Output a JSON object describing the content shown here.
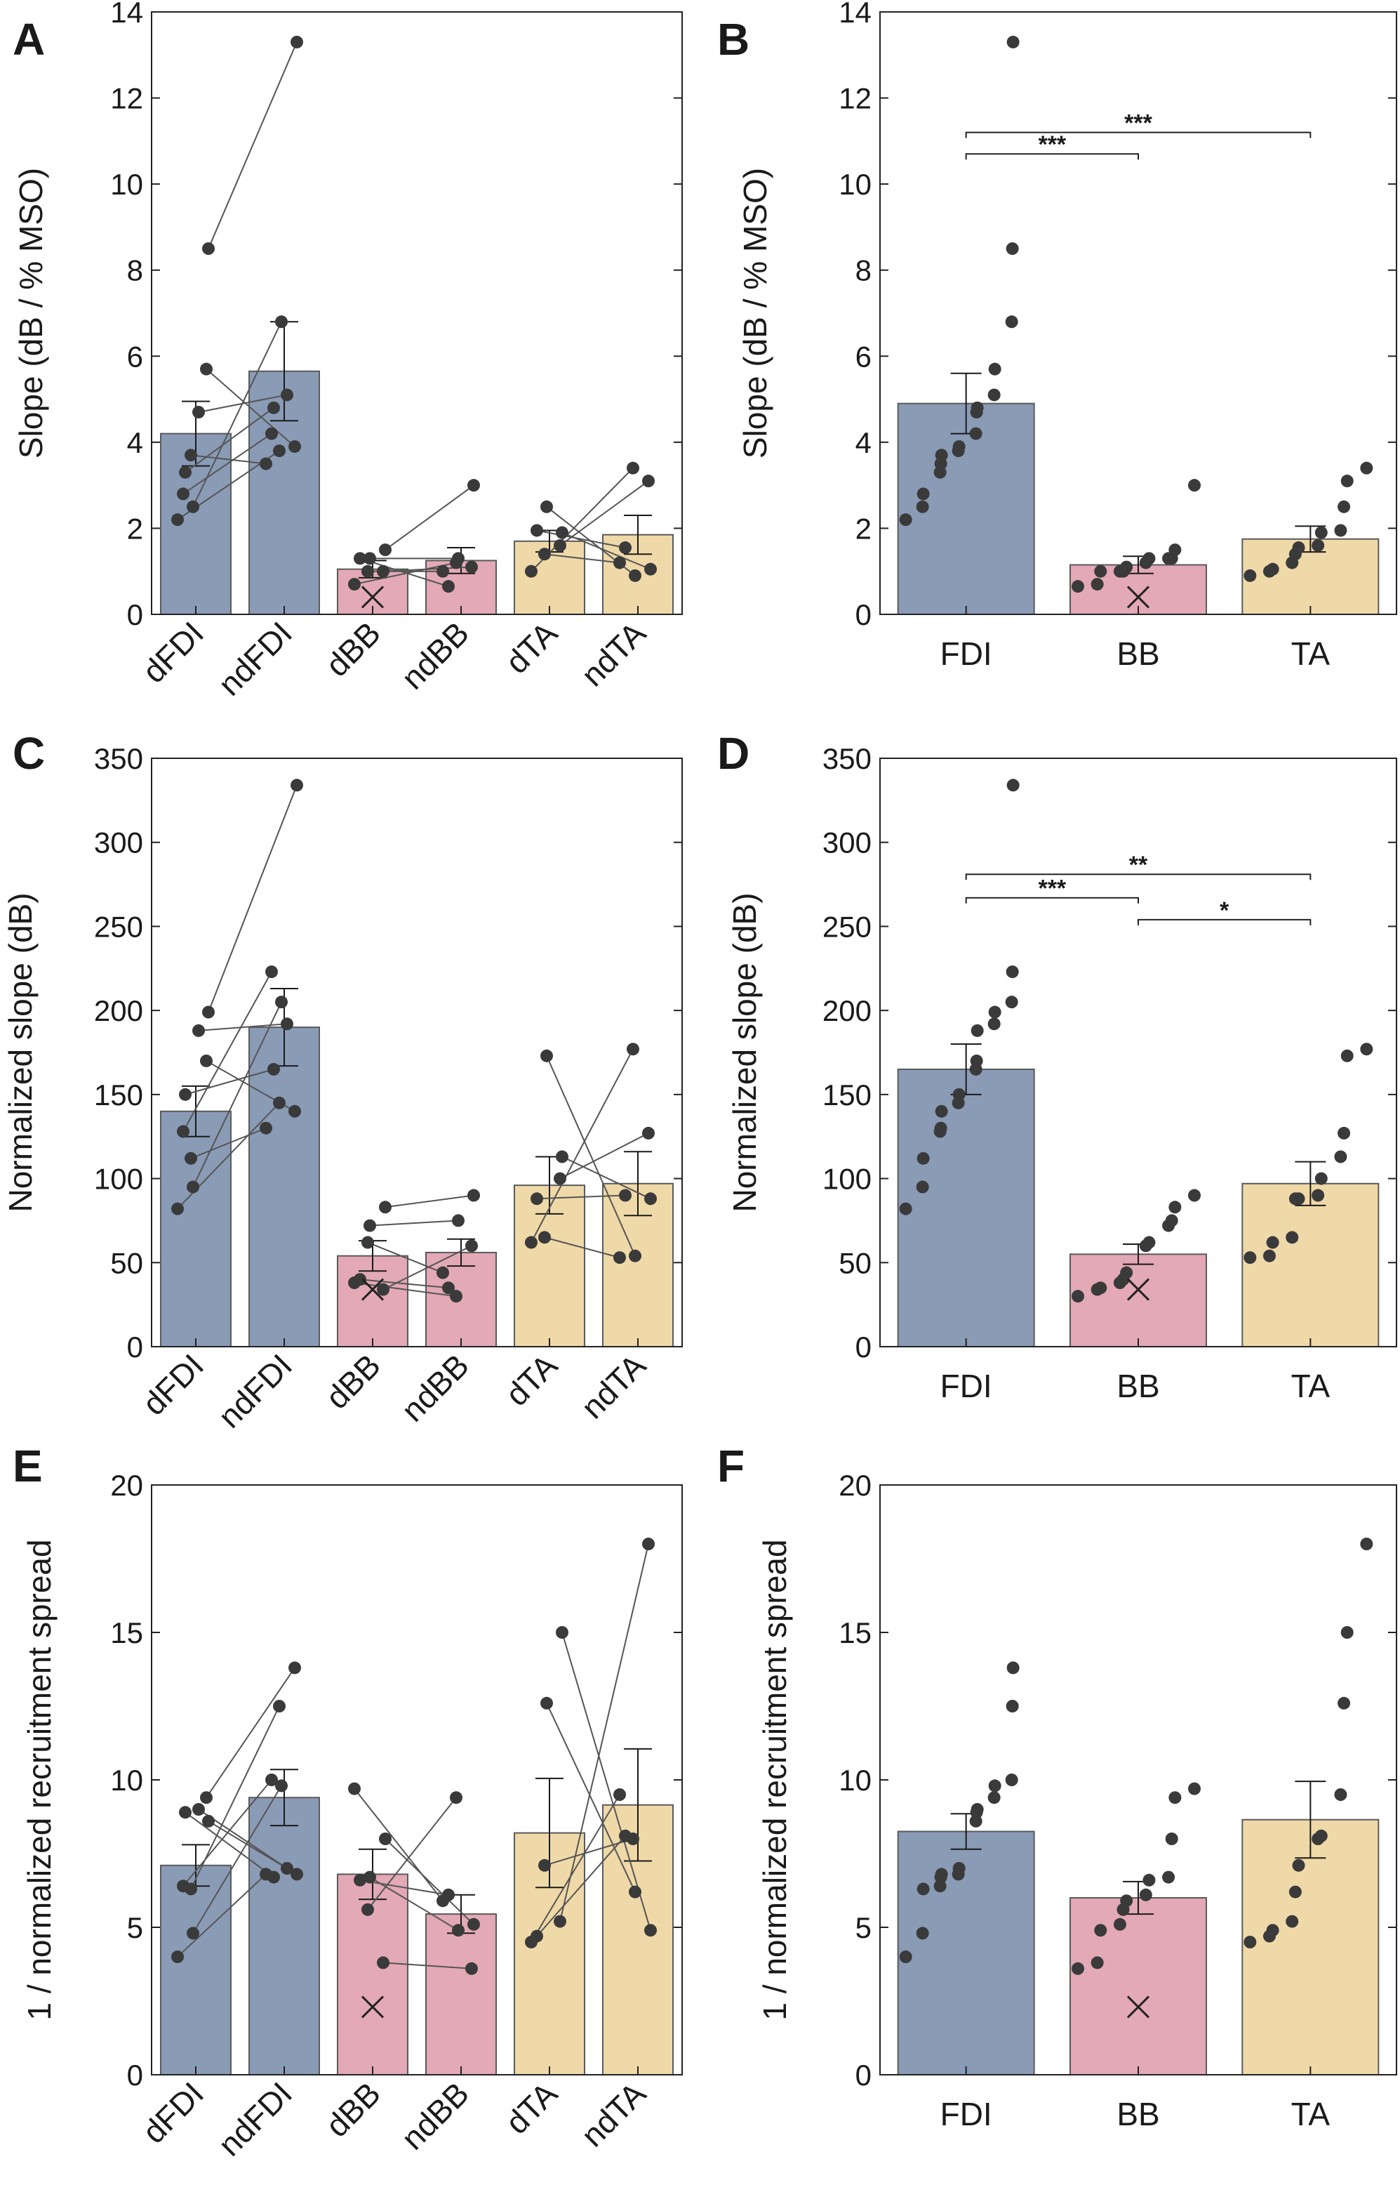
{
  "colors": {
    "FDI": "#8a9bb6",
    "BB": "#e3a9b6",
    "TA": "#f0d9a8",
    "dot": "#3a3a3a",
    "line": "#555555"
  },
  "chart_data": [
    {
      "panel": "A",
      "type": "bar",
      "paired": true,
      "ylabel": "Slope (dB / % MSO)",
      "ylim": [
        0,
        14
      ],
      "yticks": [
        "0",
        "2",
        "4",
        "6",
        "8",
        "10",
        "12",
        "14"
      ],
      "categories": [
        "dFDI",
        "ndFDI",
        "dBB",
        "ndBB",
        "dTA",
        "ndTA"
      ],
      "muscle": [
        "FDI",
        "FDI",
        "BB",
        "BB",
        "TA",
        "TA"
      ],
      "values": [
        4.2,
        5.65,
        1.05,
        1.25,
        1.7,
        1.85
      ],
      "err": [
        0.75,
        1.15,
        0.2,
        0.3,
        0.25,
        0.45
      ],
      "points": [
        [
          2.2,
          3.7,
          2.5,
          5.7,
          8.5,
          2.8,
          3.3,
          4.7
        ],
        [
          3.5,
          3.8,
          6.8,
          3.9,
          13.3,
          4.2,
          4.8,
          5.1
        ],
        [
          0.7,
          1.0,
          1.3,
          1.0,
          1.5,
          1.3
        ],
        [
          1.0,
          1.2,
          1.3,
          1.1,
          3.0,
          0.65
        ],
        [
          1.0,
          1.4,
          2.5,
          1.6,
          1.9,
          1.95
        ],
        [
          1.2,
          3.4,
          0.9,
          3.1,
          1.05,
          1.55
        ]
      ],
      "pairs": [
        [
          0,
          1
        ],
        [
          1,
          0
        ],
        [
          2,
          2
        ],
        [
          3,
          3
        ],
        [
          4,
          4
        ],
        [
          5,
          5
        ],
        [
          6,
          6
        ],
        [
          7,
          7
        ]
      ],
      "excluded": {
        "index": 2,
        "value": 0.4
      },
      "sig": []
    },
    {
      "panel": "B",
      "type": "bar",
      "paired": false,
      "ylabel": "Slope (dB / % MSO)",
      "ylim": [
        0,
        14
      ],
      "yticks": [
        "0",
        "2",
        "4",
        "6",
        "8",
        "10",
        "12",
        "14"
      ],
      "categories": [
        "FDI",
        "BB",
        "TA"
      ],
      "muscle": [
        "FDI",
        "BB",
        "TA"
      ],
      "values": [
        4.9,
        1.15,
        1.75
      ],
      "err": [
        0.7,
        0.2,
        0.3
      ],
      "points": [
        [
          2.2,
          2.5,
          2.8,
          3.3,
          3.5,
          3.7,
          3.8,
          3.9,
          4.2,
          4.7,
          4.8,
          5.1,
          5.7,
          6.8,
          8.5,
          13.3
        ],
        [
          0.65,
          0.7,
          1.0,
          1.0,
          1.0,
          1.1,
          1.2,
          1.3,
          1.3,
          1.3,
          1.5,
          3.0
        ],
        [
          0.9,
          1.0,
          1.05,
          1.2,
          1.4,
          1.55,
          1.6,
          1.9,
          1.95,
          2.5,
          3.1,
          3.4
        ]
      ],
      "excluded": {
        "index": 1,
        "value": 0.4
      },
      "sig": [
        {
          "from": 0,
          "to": 1,
          "y": 10.7,
          "label": "***"
        },
        {
          "from": 0,
          "to": 2,
          "y": 11.2,
          "label": "***"
        }
      ]
    },
    {
      "panel": "C",
      "type": "bar",
      "paired": true,
      "ylabel": "Normalized slope (dB)",
      "ylim": [
        0,
        350
      ],
      "yticks": [
        "0",
        "50",
        "100",
        "150",
        "200",
        "250",
        "300",
        "350"
      ],
      "categories": [
        "dFDI",
        "ndFDI",
        "dBB",
        "ndBB",
        "dTA",
        "ndTA"
      ],
      "muscle": [
        "FDI",
        "FDI",
        "BB",
        "BB",
        "TA",
        "TA"
      ],
      "values": [
        140,
        190,
        54,
        56,
        96,
        97
      ],
      "err": [
        15,
        23,
        9,
        8,
        17,
        19
      ],
      "points": [
        [
          82,
          112,
          95,
          170,
          199,
          128,
          150,
          188
        ],
        [
          130,
          145,
          205,
          140,
          334,
          223,
          165,
          192
        ],
        [
          38,
          62,
          72,
          34,
          83,
          40
        ],
        [
          44,
          30,
          75,
          60,
          90,
          35
        ],
        [
          62,
          65,
          173,
          100,
          113,
          88
        ],
        [
          53,
          177,
          54,
          127,
          88,
          90
        ]
      ],
      "pairs": [
        [
          0,
          1
        ],
        [
          1,
          0
        ],
        [
          2,
          2
        ],
        [
          3,
          3
        ],
        [
          4,
          4
        ],
        [
          5,
          5
        ],
        [
          6,
          6
        ],
        [
          7,
          7
        ]
      ],
      "excluded": {
        "index": 2,
        "value": 34
      },
      "sig": []
    },
    {
      "panel": "D",
      "type": "bar",
      "paired": false,
      "ylabel": "Normalized slope (dB)",
      "ylim": [
        0,
        350
      ],
      "yticks": [
        "0",
        "50",
        "100",
        "150",
        "200",
        "250",
        "300",
        "350"
      ],
      "categories": [
        "FDI",
        "BB",
        "TA"
      ],
      "muscle": [
        "FDI",
        "BB",
        "TA"
      ],
      "values": [
        165,
        55,
        97
      ],
      "err": [
        15,
        6,
        13
      ],
      "points": [
        [
          82,
          95,
          112,
          128,
          130,
          140,
          145,
          150,
          165,
          170,
          188,
          192,
          199,
          205,
          223,
          334
        ],
        [
          30,
          34,
          35,
          38,
          40,
          44,
          60,
          62,
          72,
          75,
          83,
          90
        ],
        [
          53,
          54,
          62,
          65,
          88,
          88,
          90,
          100,
          113,
          127,
          173,
          177
        ]
      ],
      "excluded": {
        "index": 1,
        "value": 34
      },
      "sig": [
        {
          "from": 0,
          "to": 1,
          "y": 267,
          "label": "***"
        },
        {
          "from": 0,
          "to": 2,
          "y": 281,
          "label": "**"
        },
        {
          "from": 1,
          "to": 2,
          "y": 254,
          "label": "*"
        }
      ]
    },
    {
      "panel": "E",
      "type": "bar",
      "paired": true,
      "ylabel": "1 / normalized recruitment spread",
      "ylim": [
        0,
        20
      ],
      "yticks": [
        "0",
        "5",
        "10",
        "15",
        "20"
      ],
      "categories": [
        "dFDI",
        "ndFDI",
        "dBB",
        "ndBB",
        "dTA",
        "ndTA"
      ],
      "muscle": [
        "FDI",
        "FDI",
        "BB",
        "BB",
        "TA",
        "TA"
      ],
      "values": [
        7.1,
        9.4,
        6.8,
        5.45,
        8.2,
        9.15
      ],
      "err": [
        0.7,
        0.95,
        0.85,
        0.65,
        1.85,
        1.9
      ],
      "points": [
        [
          4.0,
          6.3,
          4.8,
          9.4,
          8.6,
          6.4,
          8.9,
          9.0
        ],
        [
          6.8,
          12.5,
          9.8,
          13.8,
          6.8,
          10.0,
          6.7,
          7.0
        ],
        [
          9.7,
          5.6,
          6.7,
          3.8,
          8.0,
          6.6
        ],
        [
          5.9,
          9.4,
          4.9,
          3.6,
          5.1,
          6.1
        ],
        [
          4.5,
          7.1,
          12.6,
          5.2,
          15.0,
          4.7
        ],
        [
          9.5,
          8.0,
          6.2,
          18.0,
          4.9,
          8.1
        ]
      ],
      "pairs": [
        [
          0,
          0
        ],
        [
          1,
          1
        ],
        [
          2,
          2
        ],
        [
          3,
          3
        ],
        [
          4,
          4
        ],
        [
          5,
          5
        ],
        [
          6,
          6
        ],
        [
          7,
          7
        ]
      ],
      "excluded": {
        "index": 2,
        "value": 2.3
      },
      "sig": []
    },
    {
      "panel": "F",
      "type": "bar",
      "paired": false,
      "ylabel": "1 / normalized recruitment spread",
      "ylim": [
        0,
        20
      ],
      "yticks": [
        "0",
        "5",
        "10",
        "15",
        "20"
      ],
      "categories": [
        "FDI",
        "BB",
        "TA"
      ],
      "muscle": [
        "FDI",
        "BB",
        "TA"
      ],
      "values": [
        8.25,
        6.0,
        8.65
      ],
      "err": [
        0.6,
        0.55,
        1.3
      ],
      "points": [
        [
          4.0,
          4.8,
          6.3,
          6.4,
          6.7,
          6.8,
          6.8,
          7.0,
          8.6,
          8.9,
          9.0,
          9.4,
          9.8,
          10.0,
          12.5,
          13.8
        ],
        [
          3.6,
          3.8,
          4.9,
          5.1,
          5.6,
          5.9,
          6.1,
          6.6,
          6.7,
          8.0,
          9.4,
          9.7
        ],
        [
          4.5,
          4.7,
          4.9,
          5.2,
          6.2,
          7.1,
          8.0,
          8.1,
          9.5,
          12.6,
          15.0,
          18.0
        ]
      ],
      "excluded": {
        "index": 1,
        "value": 2.3
      },
      "sig": []
    }
  ]
}
